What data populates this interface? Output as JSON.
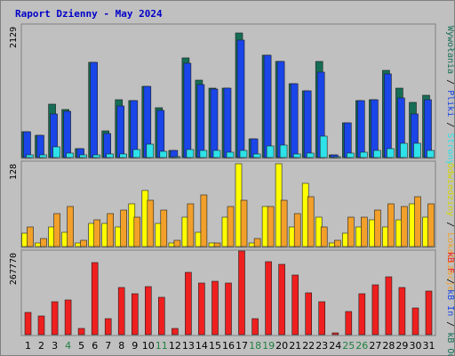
{
  "chart_data": {
    "type": "bar",
    "title": "Raport Dzienny -  May 2024",
    "categories": [
      "1",
      "2",
      "3",
      "4",
      "5",
      "6",
      "7",
      "8",
      "9",
      "10",
      "11",
      "12",
      "13",
      "14",
      "15",
      "16",
      "17",
      "18",
      "19",
      "20",
      "21",
      "22",
      "23",
      "24",
      "25",
      "26",
      "27",
      "28",
      "29",
      "30",
      "31"
    ],
    "weekend_days": [
      "4",
      "11",
      "18",
      "19",
      "25",
      "26"
    ],
    "panels": [
      {
        "name": "top",
        "ymax": 2129,
        "ymax_label": "2129",
        "legend": [
          "Wywołania",
          "Pliki",
          "Strony"
        ],
        "series": [
          {
            "name": "Wywołania",
            "color": "#166d56",
            "values": [
              420,
              360,
              860,
              770,
              140,
              1530,
              430,
              930,
              910,
              1150,
              800,
              120,
              1600,
              1250,
              1120,
              1120,
              2000,
              300,
              1640,
              1550,
              1180,
              1070,
              1550,
              40,
              560,
              920,
              930,
              1400,
              1120,
              890,
              1000
            ]
          },
          {
            "name": "Pliki",
            "color": "#1a45e8",
            "values": [
              420,
              360,
              700,
              740,
              140,
              1530,
              390,
              830,
              910,
              1150,
              760,
              120,
              1520,
              1170,
              1100,
              1120,
              1880,
              300,
              1640,
              1550,
              1180,
              1070,
              1370,
              40,
              560,
              920,
              930,
              1350,
              960,
              700,
              930
            ]
          },
          {
            "name": "Strony",
            "color": "#2de2e8",
            "values": [
              50,
              50,
              170,
              70,
              40,
              50,
              60,
              60,
              130,
              210,
              100,
              20,
              130,
              120,
              120,
              90,
              110,
              60,
              180,
              200,
              60,
              70,
              340,
              10,
              70,
              80,
              120,
              140,
              230,
              230,
              120
            ]
          }
        ]
      },
      {
        "name": "middle",
        "ymax": 128,
        "ymax_label": "128",
        "legend": [
          "Odwiedziny",
          "Lokalizacje"
        ],
        "series": [
          {
            "name": "Odwiedziny",
            "color": "#ffff00",
            "values": [
              20,
              5,
              30,
              22,
              5,
              35,
              35,
              30,
              65,
              85,
              35,
              5,
              45,
              22,
              5,
              45,
              125,
              5,
              60,
              125,
              30,
              95,
              45,
              5,
              20,
              30,
              40,
              30,
              40,
              65,
              45
            ]
          },
          {
            "name": "Lokalizacje",
            "color": "#f2a02a",
            "values": [
              30,
              12,
              50,
              60,
              10,
              40,
              50,
              55,
              45,
              70,
              55,
              10,
              65,
              78,
              5,
              60,
              70,
              12,
              60,
              70,
              50,
              75,
              30,
              10,
              45,
              45,
              55,
              65,
              60,
              75,
              65
            ]
          }
        ]
      },
      {
        "name": "bottom",
        "ymax": 267770,
        "ymax_label": "267770",
        "legend": [
          "kB F",
          "kB In",
          "kB Out"
        ],
        "series": [
          {
            "name": "kB F",
            "color": "#ef1f1f",
            "values": [
              70000,
              60000,
              105000,
              110000,
              20000,
              230000,
              50000,
              150000,
              130000,
              155000,
              120000,
              20000,
              200000,
              165000,
              170000,
              165000,
              270000,
              50000,
              235000,
              225000,
              190000,
              135000,
              105000,
              5000,
              75000,
              130000,
              160000,
              185000,
              150000,
              85000,
              140000
            ]
          }
        ]
      }
    ],
    "right_labels": [
      {
        "text": "Wywołania",
        "color": "#166d56"
      },
      {
        "text": "Pliki",
        "color": "#1a45e8"
      },
      {
        "text": "Strony",
        "color": "#2de2e8"
      },
      {
        "text": "Odwiedziny",
        "color": "#d4d400"
      },
      {
        "text": "Lokalizacje",
        "color": "#f2a02a"
      },
      {
        "text": "kB F",
        "color": "#ef1f1f"
      },
      {
        "text": "kB In",
        "color": "#1a45e8"
      },
      {
        "text": "kB Out",
        "color": "#166d56"
      }
    ]
  }
}
